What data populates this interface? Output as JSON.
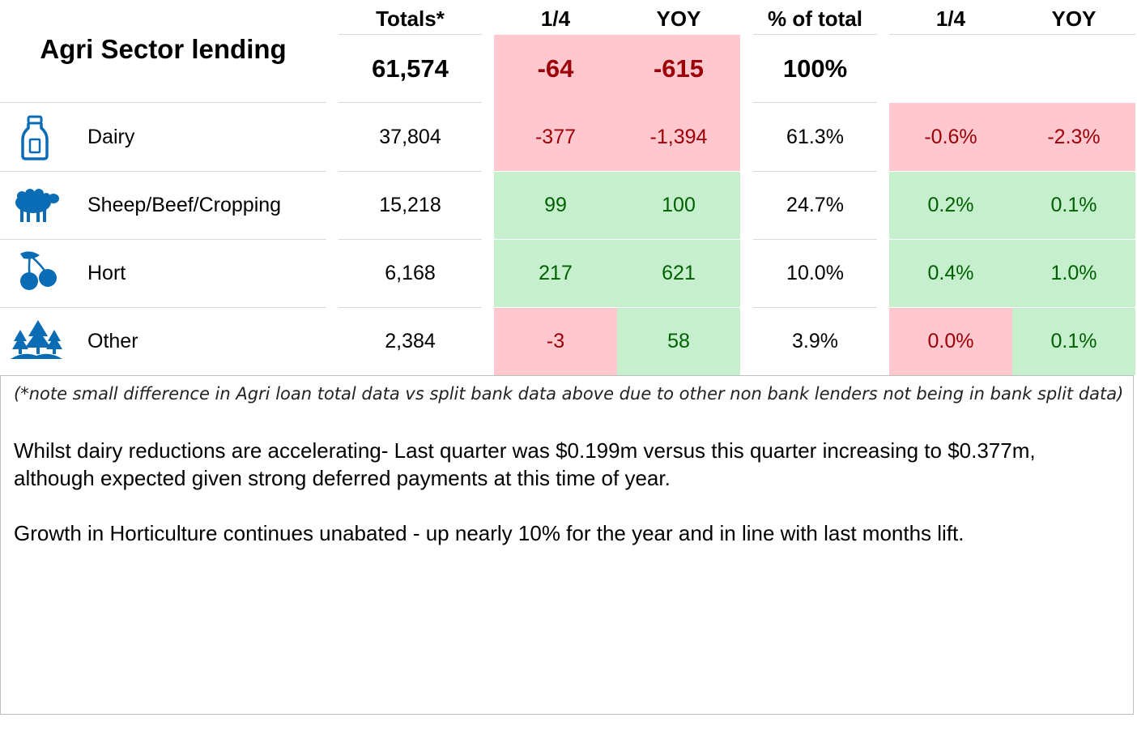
{
  "title": "Agri Sector lending",
  "headers": {
    "totals": "Totals*",
    "q1": "1/4",
    "yoy1": "YOY",
    "pct_total": "% of total",
    "q2": "1/4",
    "yoy2": "YOY"
  },
  "totals_row": {
    "total": "61,574",
    "q": "-64",
    "yoy": "-615",
    "pct": "100%"
  },
  "rows": [
    {
      "label": "Dairy",
      "icon": "milk-bottle-icon",
      "total": "37,804",
      "q": "-377",
      "yoy": "-1,394",
      "pct": "61.3%",
      "q_pct": "-0.6%",
      "yoy_pct": "-2.3%"
    },
    {
      "label": "Sheep/Beef/Cropping",
      "icon": "sheep-icon",
      "total": "15,218",
      "q": "99",
      "yoy": "100",
      "pct": "24.7%",
      "q_pct": "0.2%",
      "yoy_pct": "0.1%"
    },
    {
      "label": "Hort",
      "icon": "cherries-icon",
      "total": "6,168",
      "q": "217",
      "yoy": "621",
      "pct": "10.0%",
      "q_pct": "0.4%",
      "yoy_pct": "1.0%"
    },
    {
      "label": "Other",
      "icon": "trees-icon",
      "total": "2,384",
      "q": "-3",
      "yoy": "58",
      "pct": "3.9%",
      "q_pct": "0.0%",
      "yoy_pct": "0.1%"
    }
  ],
  "colors": {
    "negative_fill": "#ffc7ce",
    "negative_text": "#9c0006",
    "positive_fill": "#c6efce",
    "positive_text": "#006100",
    "icon_blue": "#0a6cb5"
  },
  "notes": {
    "footnote": "(*note small difference in Agri loan total data vs split bank data above due to other non bank lenders not being in bank split data)",
    "para1_line1": "Whilst dairy reductions are accelerating- Last quarter was $0.199m versus this quarter increasing to $0.377m,",
    "para1_line2": "although expected given strong deferred payments at this time of year.",
    "para2": "Growth in Horticulture continues unabated - up nearly 10% for the year and in line with last months lift."
  }
}
